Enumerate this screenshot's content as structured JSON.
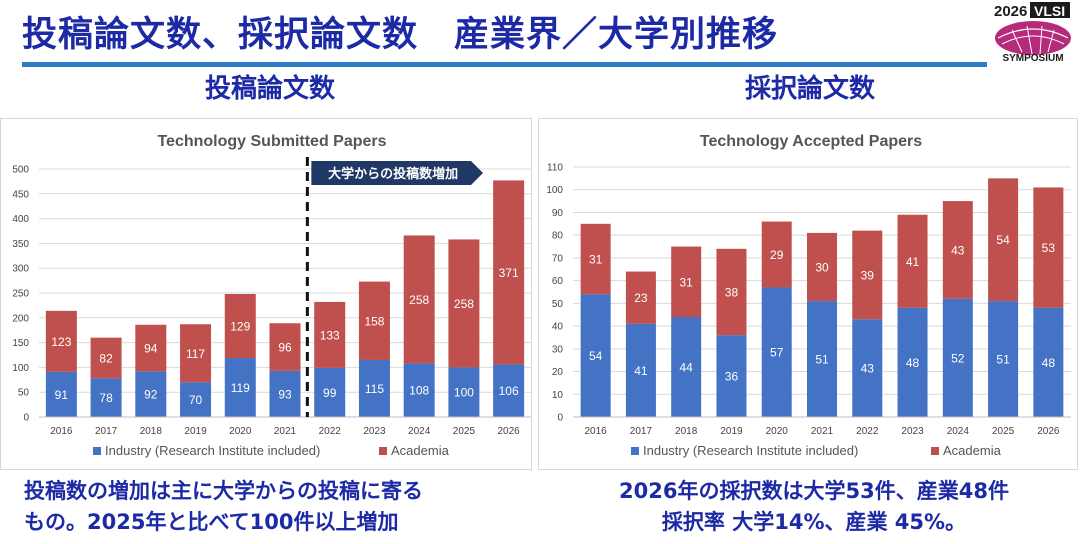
{
  "page": {
    "title": "投稿論文数、採択論文数　産業界／大学別推移",
    "logo": {
      "year": "2026",
      "name": "VLSI",
      "sub": "SYMPOSIUM"
    }
  },
  "left": {
    "heading": "投稿論文数",
    "callout": "大学からの投稿数増加",
    "bottom_lines": [
      "投稿数の増加は主に大学からの投稿に寄る",
      "もの。2025年と比べて100件以上増加"
    ]
  },
  "right": {
    "heading": "採択論文数",
    "bottom_lines": [
      "2026年の採択数は大学53件、産業48件",
      "採択率 大学14%、産業 45%。"
    ]
  },
  "colors": {
    "industry": "#4472c4",
    "academia": "#c0504d",
    "title": "#1d2aa6",
    "rule": "#2e7cc6"
  },
  "chart_data": [
    {
      "type": "bar",
      "stacked": true,
      "title": "Technology Submitted Papers",
      "categories": [
        "2016",
        "2017",
        "2018",
        "2019",
        "2020",
        "2021",
        "2022",
        "2023",
        "2024",
        "2025",
        "2026"
      ],
      "series": [
        {
          "name": "Industry (Research Institute included)",
          "values": [
            91,
            78,
            92,
            70,
            119,
            93,
            99,
            115,
            108,
            100,
            106
          ]
        },
        {
          "name": "Academia",
          "values": [
            123,
            82,
            94,
            117,
            129,
            96,
            133,
            158,
            258,
            258,
            371
          ]
        }
      ],
      "ylim": [
        0,
        500
      ],
      "yticks": [
        "0",
        "50",
        "100",
        "150",
        "200",
        "250",
        "300",
        "350",
        "400",
        "450",
        "500"
      ],
      "grid": true,
      "legend": "bottom",
      "divider_after": "2021"
    },
    {
      "type": "bar",
      "stacked": true,
      "title": "Technology Accepted Papers",
      "categories": [
        "2016",
        "2017",
        "2018",
        "2019",
        "2020",
        "2021",
        "2022",
        "2023",
        "2024",
        "2025",
        "2026"
      ],
      "series": [
        {
          "name": "Industry (Research Institute included)",
          "values": [
            54,
            41,
            44,
            36,
            57,
            51,
            43,
            48,
            52,
            51,
            48
          ]
        },
        {
          "name": "Academia",
          "values": [
            31,
            23,
            31,
            38,
            29,
            30,
            39,
            41,
            43,
            54,
            53
          ]
        }
      ],
      "ylim": [
        0,
        110
      ],
      "yticks": [
        "0",
        "10",
        "20",
        "30",
        "40",
        "50",
        "60",
        "70",
        "80",
        "90",
        "100",
        "110"
      ],
      "grid": true,
      "legend": "bottom"
    }
  ]
}
